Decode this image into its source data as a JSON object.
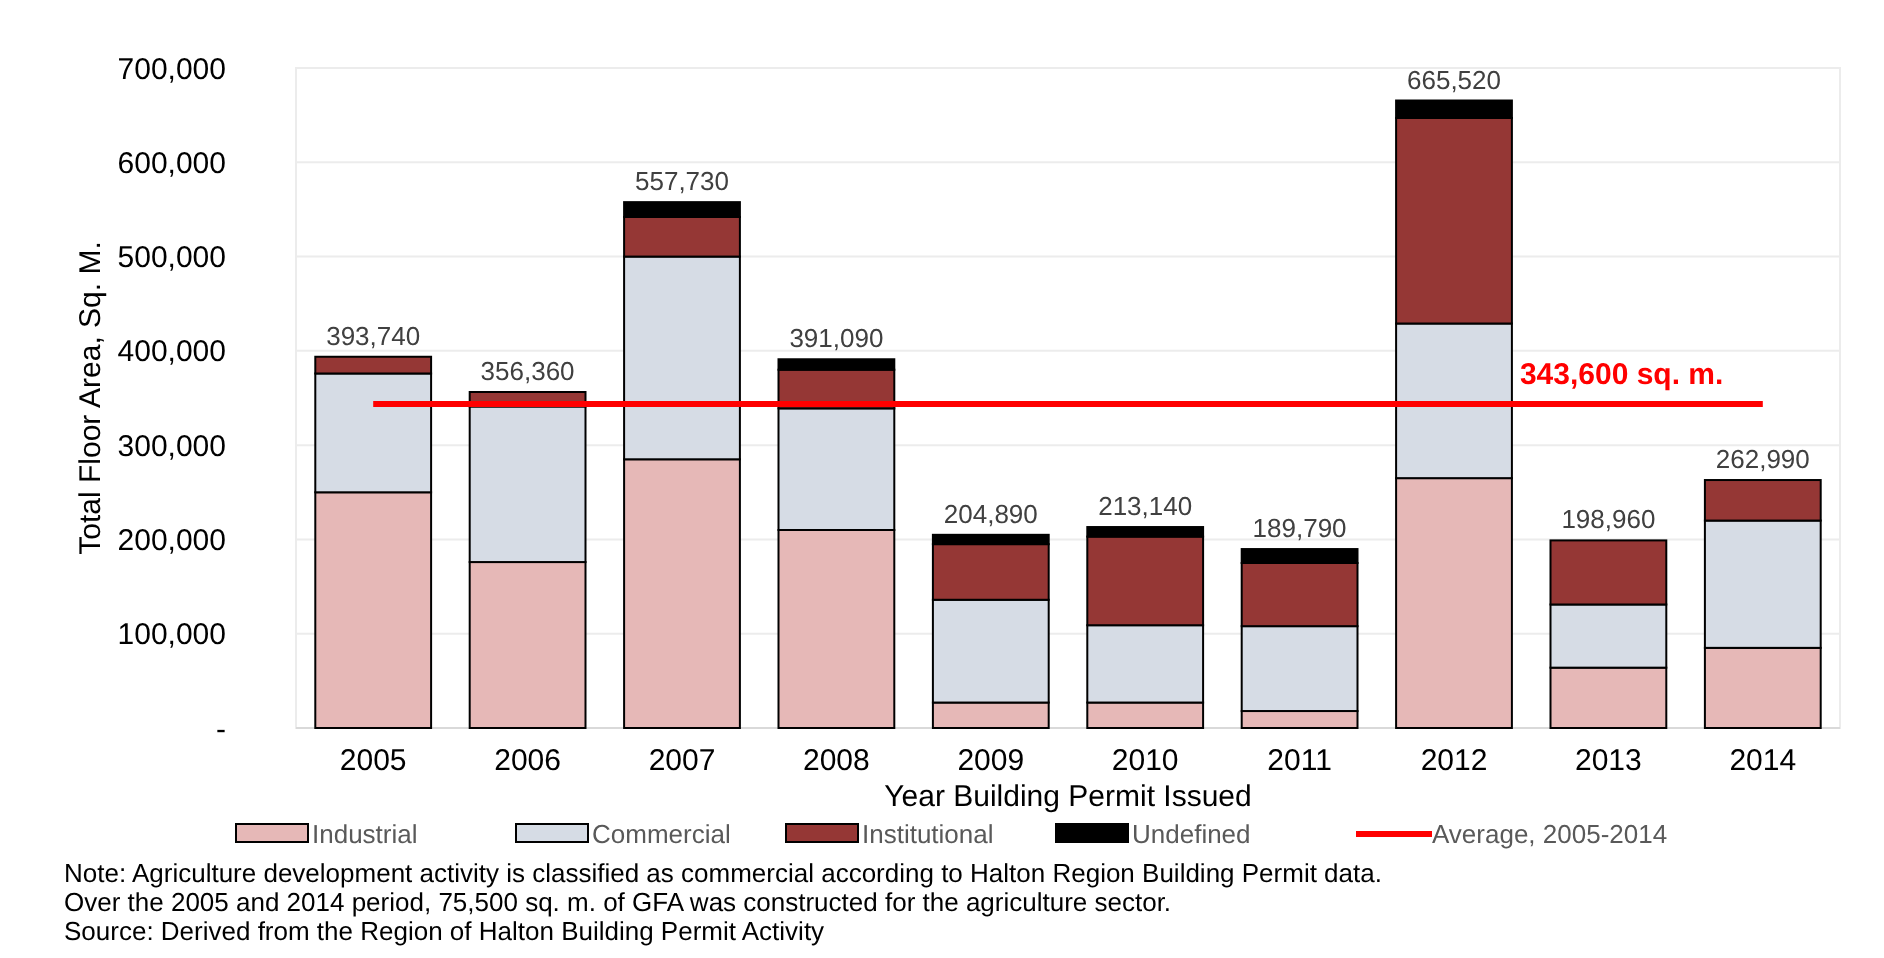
{
  "chart_data": {
    "type": "bar",
    "stacked": true,
    "xlabel": "Year Building Permit Issued",
    "ylabel": "Total Floor Area, Sq. M.",
    "categories": [
      "2005",
      "2006",
      "2007",
      "2008",
      "2009",
      "2010",
      "2011",
      "2012",
      "2013",
      "2014"
    ],
    "series": [
      {
        "name": "Industrial",
        "color": "#e6b8b7",
        "values": [
          250000,
          176000,
          285000,
          210000,
          27000,
          27000,
          18000,
          265000,
          64000,
          85000
        ]
      },
      {
        "name": "Commercial",
        "color": "#d6dce5",
        "values": [
          126000,
          165000,
          215000,
          129000,
          109000,
          82000,
          90000,
          164000,
          67000,
          135000
        ]
      },
      {
        "name": "Institutional",
        "color": "#953735",
        "values": [
          17740,
          15360,
          42000,
          41000,
          59000,
          94000,
          67000,
          218000,
          67960,
          42990
        ]
      },
      {
        "name": "Undefined",
        "color": "#000000",
        "values": [
          0,
          0,
          15730,
          11090,
          9890,
          10140,
          14790,
          18520,
          0,
          0
        ]
      },
      {
        "name": "Average, 2005-2014",
        "type": "line",
        "color": "#ff0000",
        "marker": "none",
        "values": [
          343600,
          343600,
          343600,
          343600,
          343600,
          343600,
          343600,
          343600,
          343600,
          343600
        ]
      }
    ],
    "totals": [
      "393,740",
      "356,360",
      "557,730",
      "391,090",
      "204,890",
      "213,140",
      "189,790",
      "665,520",
      "198,960",
      "262,990"
    ],
    "ylim": [
      0,
      700000
    ],
    "yticks": [
      {
        "value": 0,
        "label": "-"
      },
      {
        "value": 100000,
        "label": "100,000"
      },
      {
        "value": 200000,
        "label": "200,000"
      },
      {
        "value": 300000,
        "label": "300,000"
      },
      {
        "value": 400000,
        "label": "400,000"
      },
      {
        "value": 500000,
        "label": "500,000"
      },
      {
        "value": 600000,
        "label": "600,000"
      },
      {
        "value": 700000,
        "label": "700,000"
      }
    ],
    "grid": "y",
    "legend": "bottom",
    "annotations": [
      {
        "text": "343,600 sq. m.",
        "x": "2013",
        "y": 343600
      },
      "Note: Agriculture development activity is classified as commercial according to Halton  Region  Building Permit data.",
      "Over the 2005 and 2014 period, 75,500 sq. m. of GFA was constructed for the agriculture  sector.",
      "Source: Derived from the Region of Halton Building Permit Activity"
    ]
  }
}
